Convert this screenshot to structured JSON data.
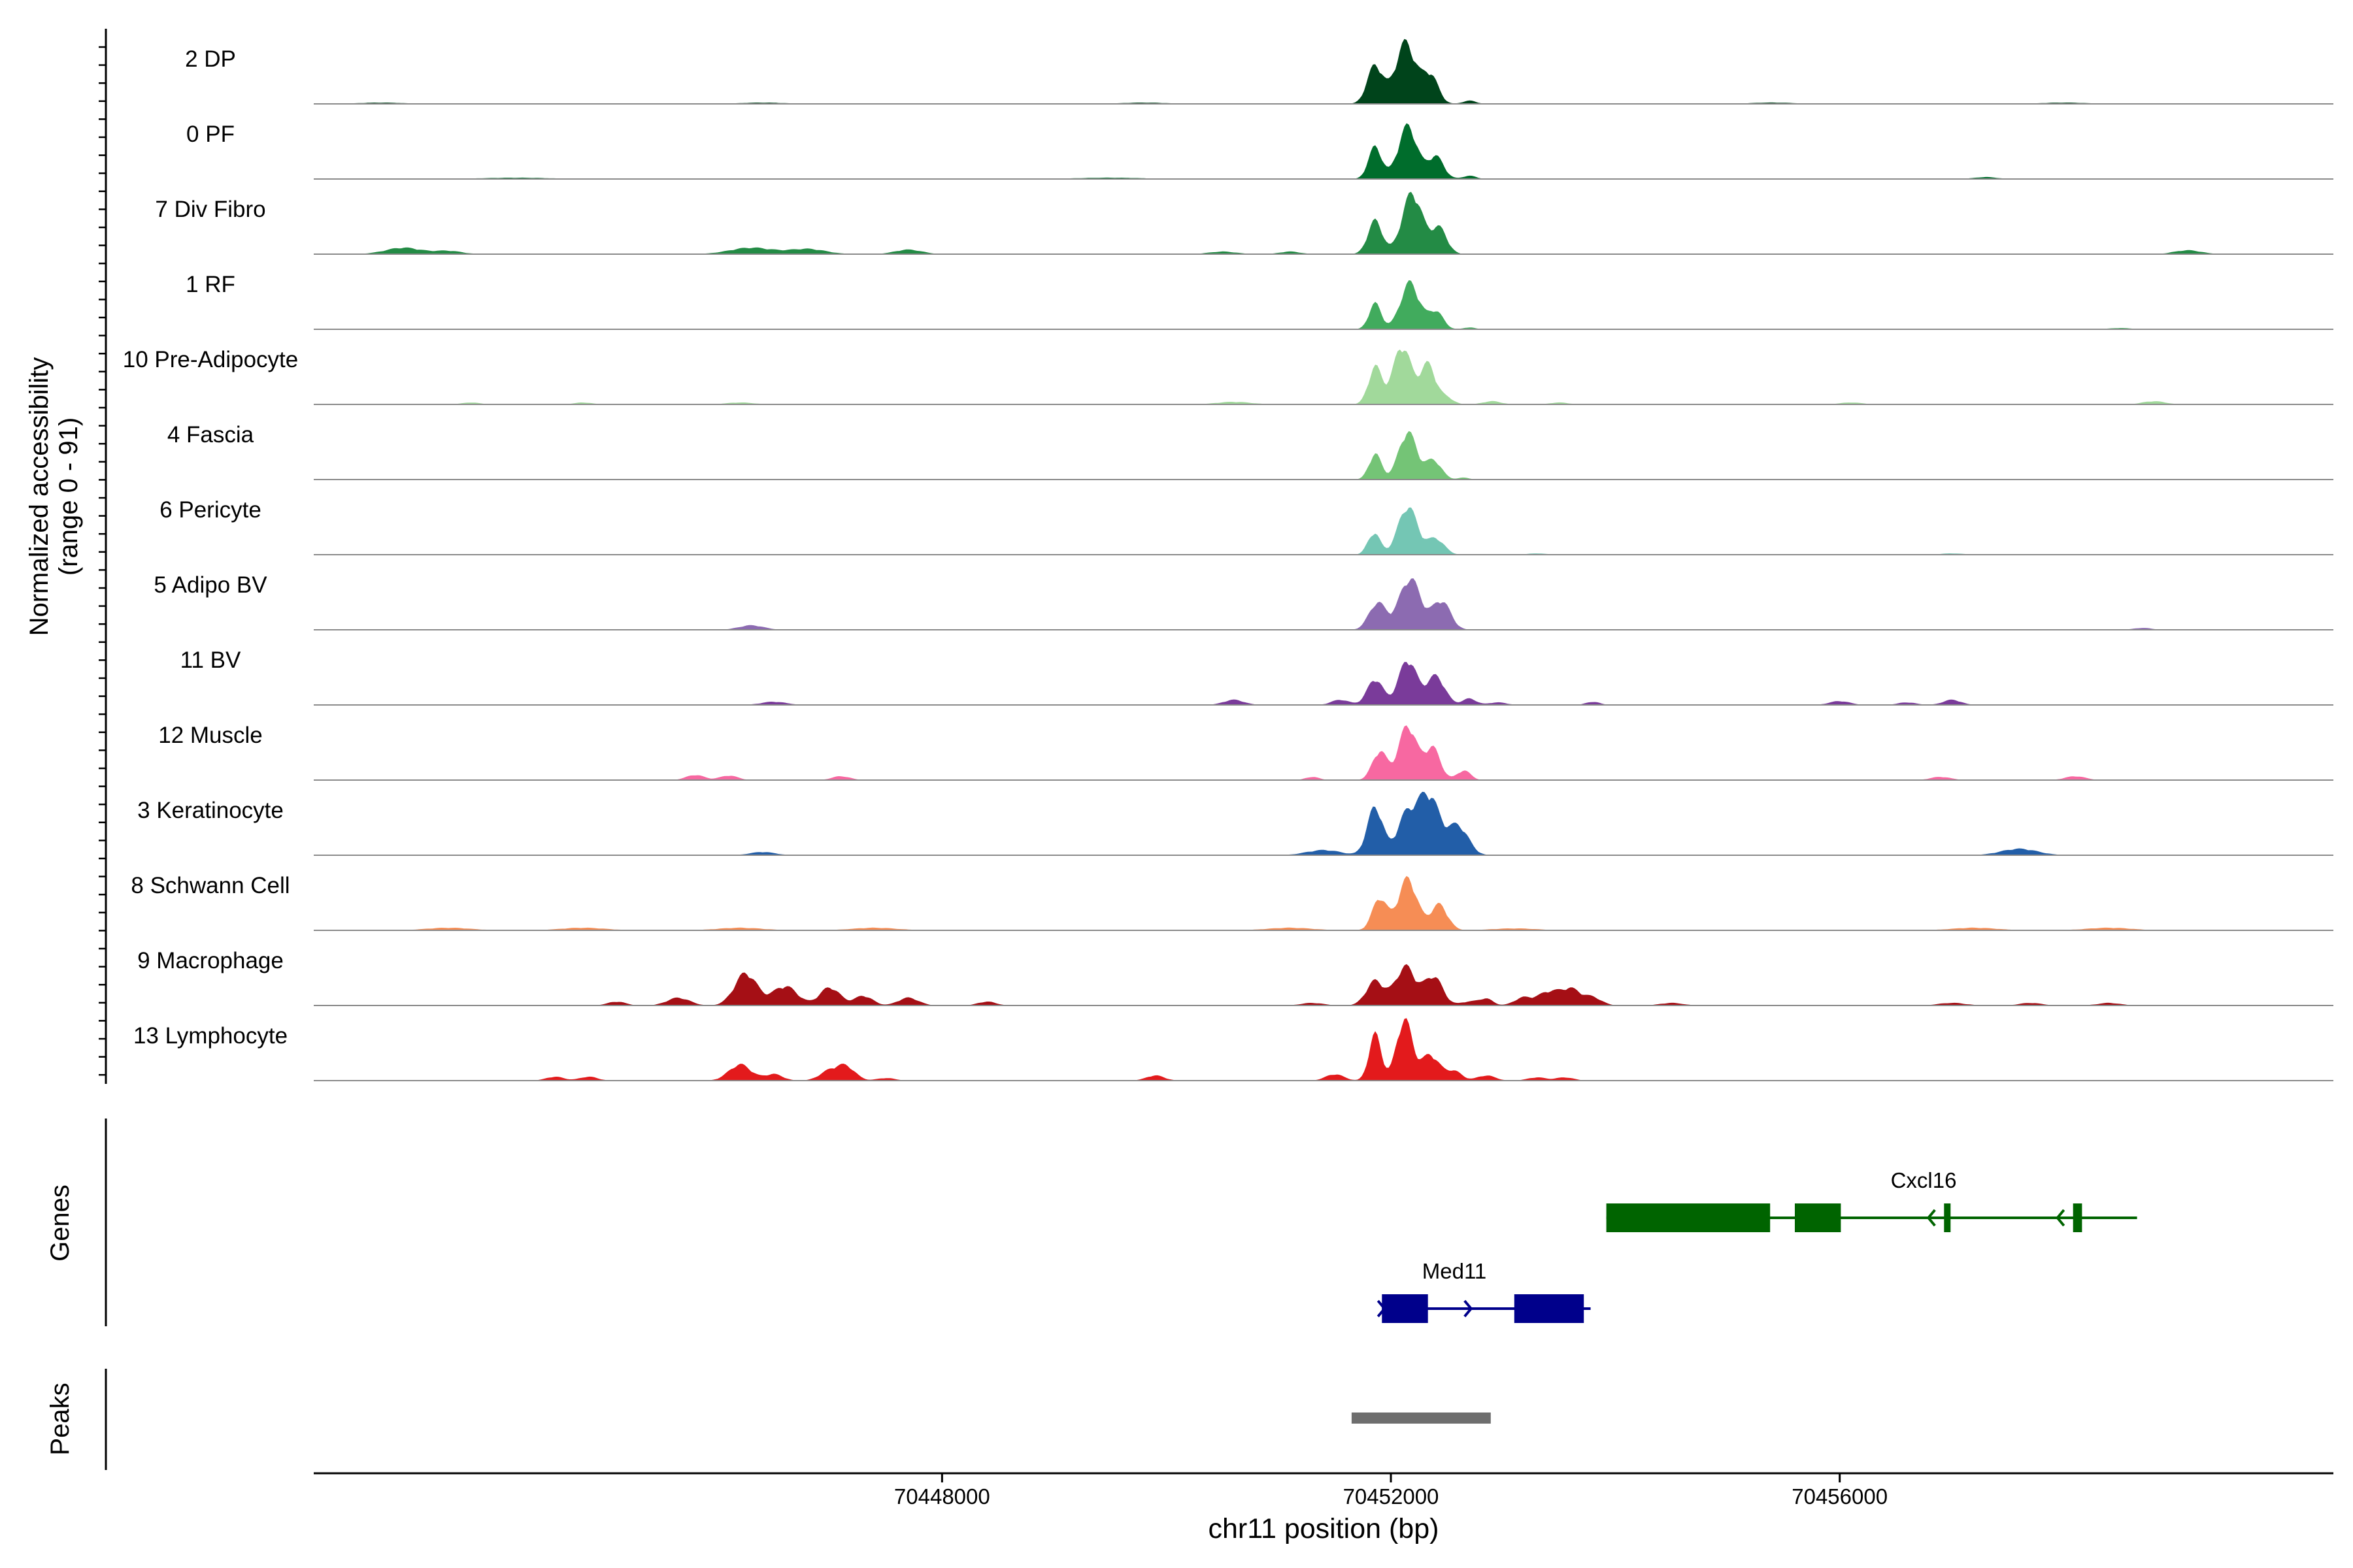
{
  "chart_data": {
    "type": "area",
    "title": "",
    "ylabel_lines": [
      "Normalized accessibility",
      "(range 0 - 91)"
    ],
    "xlabel": "chr11 position (bp)",
    "xlim": [
      70442400,
      70460400
    ],
    "x_ticks": [
      70448000,
      70452000,
      70456000
    ],
    "x_tick_labels": [
      "70448000",
      "70452000",
      "70456000"
    ],
    "y_range": [
      0,
      91
    ],
    "grid": false,
    "legend": "none",
    "tracks": [
      {
        "name": "2 DP",
        "color": "#00441b",
        "peaks": [
          [
            70451860,
            60,
            70
          ],
          [
            70452130,
            95,
            90
          ],
          [
            70452350,
            45,
            70
          ],
          [
            70452700,
            5,
            60
          ],
          [
            70443000,
            2,
            200
          ],
          [
            70446400,
            2,
            200
          ],
          [
            70449800,
            2,
            200
          ],
          [
            70455400,
            2,
            200
          ],
          [
            70458000,
            2,
            200
          ]
        ]
      },
      {
        "name": "0 PF",
        "color": "#006d2c",
        "peaks": [
          [
            70451860,
            50,
            60
          ],
          [
            70452150,
            82,
            85
          ],
          [
            70452400,
            35,
            70
          ],
          [
            70452700,
            5,
            60
          ],
          [
            70444200,
            2,
            300
          ],
          [
            70449500,
            2,
            300
          ],
          [
            70457300,
            3,
            100
          ]
        ]
      },
      {
        "name": "7 Div Fibro",
        "color": "#238b45",
        "peaks": [
          [
            70451860,
            52,
            65
          ],
          [
            70452190,
            95,
            90
          ],
          [
            70452430,
            40,
            70
          ],
          [
            70443200,
            10,
            160
          ],
          [
            70443600,
            5,
            120
          ],
          [
            70446300,
            10,
            190
          ],
          [
            70446800,
            8,
            160
          ],
          [
            70447700,
            7,
            120
          ],
          [
            70450500,
            4,
            120
          ],
          [
            70451100,
            4,
            90
          ],
          [
            70459100,
            6,
            120
          ]
        ]
      },
      {
        "name": "1 RF",
        "color": "#41ab5d",
        "peaks": [
          [
            70451860,
            40,
            55
          ],
          [
            70452170,
            72,
            85
          ],
          [
            70452400,
            28,
            65
          ],
          [
            70452700,
            3,
            50
          ],
          [
            70458500,
            2,
            100
          ]
        ]
      },
      {
        "name": "10 Pre-Adipocyte",
        "color": "#a1d99b",
        "peaks": [
          [
            70451860,
            58,
            60
          ],
          [
            70452100,
            91,
            80
          ],
          [
            70452330,
            62,
            70
          ],
          [
            70452500,
            10,
            60
          ],
          [
            70452900,
            5,
            80
          ],
          [
            70443800,
            3,
            80
          ],
          [
            70444800,
            3,
            80
          ],
          [
            70446200,
            3,
            120
          ],
          [
            70450600,
            4,
            150
          ],
          [
            70453500,
            3,
            80
          ],
          [
            70456100,
            3,
            100
          ],
          [
            70458800,
            5,
            100
          ]
        ]
      },
      {
        "name": "4 Fascia",
        "color": "#74c476",
        "peaks": [
          [
            70451860,
            40,
            55
          ],
          [
            70452150,
            74,
            80
          ],
          [
            70452380,
            30,
            70
          ],
          [
            70452650,
            3,
            50
          ]
        ]
      },
      {
        "name": "6 Pericyte",
        "color": "#74c6b4",
        "peaks": [
          [
            70451850,
            34,
            55
          ],
          [
            70452150,
            75,
            85
          ],
          [
            70452400,
            25,
            75
          ],
          [
            70453300,
            2,
            80
          ],
          [
            70457000,
            2,
            100
          ]
        ]
      },
      {
        "name": "5 Adipo BV",
        "color": "#8c6bb1",
        "peaks": [
          [
            70451880,
            42,
            75
          ],
          [
            70452170,
            80,
            95
          ],
          [
            70452450,
            45,
            80
          ],
          [
            70446300,
            7,
            110
          ],
          [
            70458700,
            3,
            80
          ]
        ]
      },
      {
        "name": "11 BV",
        "color": "#7a3b9a",
        "peaks": [
          [
            70451860,
            40,
            70
          ],
          [
            70452150,
            70,
            80
          ],
          [
            70452400,
            45,
            80
          ],
          [
            70452700,
            10,
            60
          ],
          [
            70446500,
            5,
            110
          ],
          [
            70450600,
            8,
            90
          ],
          [
            70451550,
            8,
            80
          ],
          [
            70452950,
            4,
            80
          ],
          [
            70453800,
            5,
            60
          ],
          [
            70456000,
            6,
            90
          ],
          [
            70456600,
            4,
            80
          ],
          [
            70457000,
            8,
            80
          ]
        ]
      },
      {
        "name": "12 Muscle",
        "color": "#f768a1",
        "peaks": [
          [
            70451900,
            45,
            65
          ],
          [
            70452150,
            85,
            80
          ],
          [
            70452370,
            50,
            70
          ],
          [
            70452650,
            15,
            60
          ],
          [
            70445800,
            8,
            80
          ],
          [
            70446100,
            7,
            80
          ],
          [
            70447100,
            6,
            80
          ],
          [
            70451300,
            5,
            60
          ],
          [
            70456900,
            5,
            90
          ],
          [
            70458100,
            6,
            90
          ]
        ]
      },
      {
        "name": "3 Keratinocyte",
        "color": "#225ea8",
        "peaks": [
          [
            70451860,
            75,
            70
          ],
          [
            70452130,
            55,
            80
          ],
          [
            70452330,
            95,
            100
          ],
          [
            70452600,
            45,
            90
          ],
          [
            70451400,
            8,
            150
          ],
          [
            70446400,
            5,
            110
          ],
          [
            70457600,
            10,
            160
          ]
        ]
      },
      {
        "name": "8 Schwann Cell",
        "color": "#f68d55",
        "peaks": [
          [
            70451900,
            50,
            65
          ],
          [
            70452150,
            80,
            85
          ],
          [
            70452430,
            40,
            75
          ],
          [
            70443600,
            4,
            200
          ],
          [
            70444800,
            4,
            200
          ],
          [
            70446200,
            4,
            200
          ],
          [
            70447400,
            4,
            200
          ],
          [
            70451100,
            4,
            200
          ],
          [
            70453100,
            3,
            200
          ],
          [
            70457200,
            4,
            200
          ],
          [
            70458400,
            4,
            200
          ]
        ]
      },
      {
        "name": "9 Macrophage",
        "color": "#a50f15",
        "peaks": [
          [
            70451860,
            38,
            80
          ],
          [
            70452130,
            60,
            90
          ],
          [
            70452380,
            45,
            80
          ],
          [
            70446250,
            50,
            100
          ],
          [
            70446600,
            30,
            110
          ],
          [
            70447000,
            28,
            90
          ],
          [
            70447300,
            15,
            80
          ],
          [
            70445100,
            6,
            80
          ],
          [
            70445650,
            12,
            100
          ],
          [
            70447700,
            12,
            90
          ],
          [
            70448400,
            6,
            80
          ],
          [
            70451300,
            4,
            100
          ],
          [
            70452700,
            6,
            80
          ],
          [
            70453180,
            12,
            80
          ],
          [
            70453400,
            20,
            90
          ],
          [
            70453600,
            25,
            90
          ],
          [
            70453800,
            12,
            80
          ],
          [
            70452850,
            10,
            60
          ],
          [
            70454500,
            4,
            100
          ],
          [
            70457000,
            4,
            120
          ],
          [
            70457700,
            4,
            100
          ],
          [
            70458400,
            4,
            100
          ]
        ]
      },
      {
        "name": "13 Lymphocyte",
        "color": "#e31a1c",
        "peaks": [
          [
            70451860,
            72,
            55
          ],
          [
            70452120,
            95,
            70
          ],
          [
            70452350,
            40,
            80
          ],
          [
            70452560,
            15,
            70
          ],
          [
            70446200,
            25,
            100
          ],
          [
            70446500,
            10,
            80
          ],
          [
            70447000,
            15,
            90
          ],
          [
            70447150,
            20,
            80
          ],
          [
            70444550,
            6,
            80
          ],
          [
            70444850,
            6,
            80
          ],
          [
            70447500,
            4,
            80
          ],
          [
            70449900,
            8,
            80
          ],
          [
            70451500,
            10,
            80
          ],
          [
            70452850,
            8,
            80
          ],
          [
            70453300,
            5,
            80
          ],
          [
            70453550,
            5,
            80
          ]
        ]
      }
    ],
    "genes": [
      {
        "name": "Cxcl16",
        "color": "#006400",
        "strand": "-",
        "start": 70453920,
        "end": 70458650,
        "exons": [
          [
            70453920,
            70455380
          ],
          [
            70455600,
            70456010
          ],
          [
            70456930,
            70456980
          ],
          [
            70458080,
            70458160
          ]
        ]
      },
      {
        "name": "Med11",
        "color": "#00008b",
        "strand": "+",
        "start": 70451920,
        "end": 70453780,
        "exons": [
          [
            70451920,
            70452330
          ],
          [
            70453100,
            70453720
          ]
        ]
      }
    ],
    "peaks_track": [
      [
        70451650,
        70452890
      ]
    ],
    "peaks_color": "#6e6e6e",
    "gene_panel_label": "Genes",
    "peak_panel_label": "Peaks"
  }
}
